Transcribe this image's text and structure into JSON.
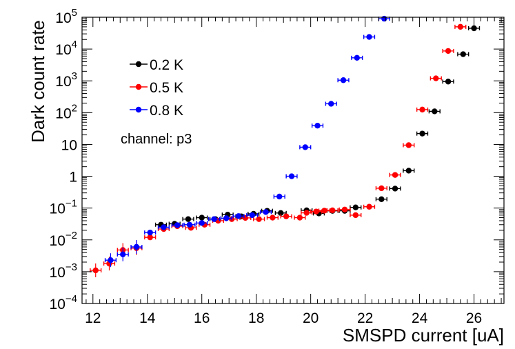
{
  "chart_data": {
    "type": "scatter",
    "xlabel": "SMSPD current [uA]",
    "ylabel": "Dark count rate",
    "xlim": [
      11.6,
      27.1
    ],
    "ylim": [
      0.0001,
      100000
    ],
    "yscale": "log",
    "xticks": [
      12,
      14,
      16,
      18,
      20,
      22,
      24,
      26
    ],
    "xtick_labels": [
      "12",
      "14",
      "16",
      "18",
      "20",
      "22",
      "24",
      "26"
    ],
    "yticks": [
      {
        "value": 0.0001,
        "base": "10",
        "exp": "−4"
      },
      {
        "value": 0.001,
        "base": "10",
        "exp": "−3"
      },
      {
        "value": 0.01,
        "base": "10",
        "exp": "−2"
      },
      {
        "value": 0.1,
        "base": "10",
        "exp": "−1"
      },
      {
        "value": 1,
        "base": "1",
        "exp": ""
      },
      {
        "value": 10,
        "base": "10",
        "exp": ""
      },
      {
        "value": 100,
        "base": "10",
        "exp": "2"
      },
      {
        "value": 1000,
        "base": "10",
        "exp": "3"
      },
      {
        "value": 10000,
        "base": "10",
        "exp": "4"
      },
      {
        "value": 100000,
        "base": "10",
        "exp": "5"
      }
    ],
    "annotation": "channel: p3",
    "x_error": 0.2,
    "series": [
      {
        "name": "0.2 K",
        "color": "#000000",
        "points": [
          [
            14.5,
            0.03
          ],
          [
            15.0,
            0.032
          ],
          [
            15.5,
            0.045
          ],
          [
            16.0,
            0.05
          ],
          [
            16.5,
            0.045
          ],
          [
            16.95,
            0.062
          ],
          [
            17.45,
            0.055
          ],
          [
            17.9,
            0.066
          ],
          [
            18.4,
            0.082
          ],
          [
            18.9,
            0.07
          ],
          [
            19.85,
            0.085
          ],
          [
            20.3,
            0.068
          ],
          [
            20.8,
            0.082
          ],
          [
            21.25,
            0.082
          ],
          [
            21.65,
            0.105
          ],
          [
            22.6,
            0.19
          ],
          [
            23.1,
            0.41
          ],
          [
            23.6,
            1.5
          ],
          [
            24.1,
            22
          ],
          [
            24.55,
            110
          ],
          [
            25.05,
            950
          ],
          [
            25.6,
            6900
          ],
          [
            26.0,
            45000
          ]
        ]
      },
      {
        "name": "0.5 K",
        "color": "#ff0000",
        "points": [
          [
            12.1,
            0.0011
          ],
          [
            12.6,
            0.0018
          ],
          [
            13.1,
            0.0048
          ],
          [
            13.6,
            0.0055
          ],
          [
            14.1,
            0.012
          ],
          [
            14.6,
            0.022
          ],
          [
            15.1,
            0.027
          ],
          [
            15.6,
            0.024
          ],
          [
            16.1,
            0.03
          ],
          [
            16.6,
            0.04
          ],
          [
            17.1,
            0.045
          ],
          [
            17.6,
            0.049
          ],
          [
            18.1,
            0.045
          ],
          [
            18.6,
            0.05
          ],
          [
            19.1,
            0.055
          ],
          [
            19.6,
            0.05
          ],
          [
            19.85,
            0.071
          ],
          [
            20.2,
            0.078
          ],
          [
            20.5,
            0.083
          ],
          [
            20.8,
            0.085
          ],
          [
            21.25,
            0.09
          ],
          [
            21.65,
            0.06
          ],
          [
            22.15,
            0.11
          ],
          [
            22.6,
            0.42
          ],
          [
            23.1,
            1.1
          ],
          [
            23.6,
            9.5
          ],
          [
            24.1,
            125
          ],
          [
            24.6,
            1200
          ],
          [
            25.05,
            8700
          ],
          [
            25.5,
            50000
          ]
        ]
      },
      {
        "name": "0.8 K",
        "color": "#0000ff",
        "points": [
          [
            12.65,
            0.0023
          ],
          [
            13.1,
            0.0035
          ],
          [
            13.6,
            0.006
          ],
          [
            14.1,
            0.017
          ],
          [
            14.6,
            0.025
          ],
          [
            15.1,
            0.029
          ],
          [
            15.55,
            0.03
          ],
          [
            16.0,
            0.034
          ],
          [
            16.45,
            0.045
          ],
          [
            16.9,
            0.048
          ],
          [
            17.35,
            0.056
          ],
          [
            17.85,
            0.06
          ],
          [
            18.35,
            0.075
          ],
          [
            18.85,
            0.23
          ],
          [
            19.3,
            1.0
          ],
          [
            19.8,
            8.2
          ],
          [
            20.25,
            39
          ],
          [
            20.75,
            190
          ],
          [
            21.2,
            1050
          ],
          [
            21.7,
            5300
          ],
          [
            22.15,
            24000
          ],
          [
            22.7,
            90000
          ]
        ]
      }
    ]
  }
}
